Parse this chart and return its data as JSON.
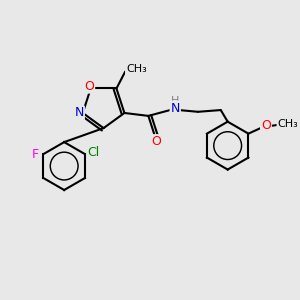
{
  "bg_color": "#e8e8e8",
  "bond_color": "#000000",
  "atom_colors": {
    "N": "#0000cd",
    "O": "#ff0000",
    "F": "#ff00ff",
    "Cl": "#008000",
    "H": "#808080",
    "C": "#000000"
  },
  "font_size": 9,
  "line_width": 1.5
}
